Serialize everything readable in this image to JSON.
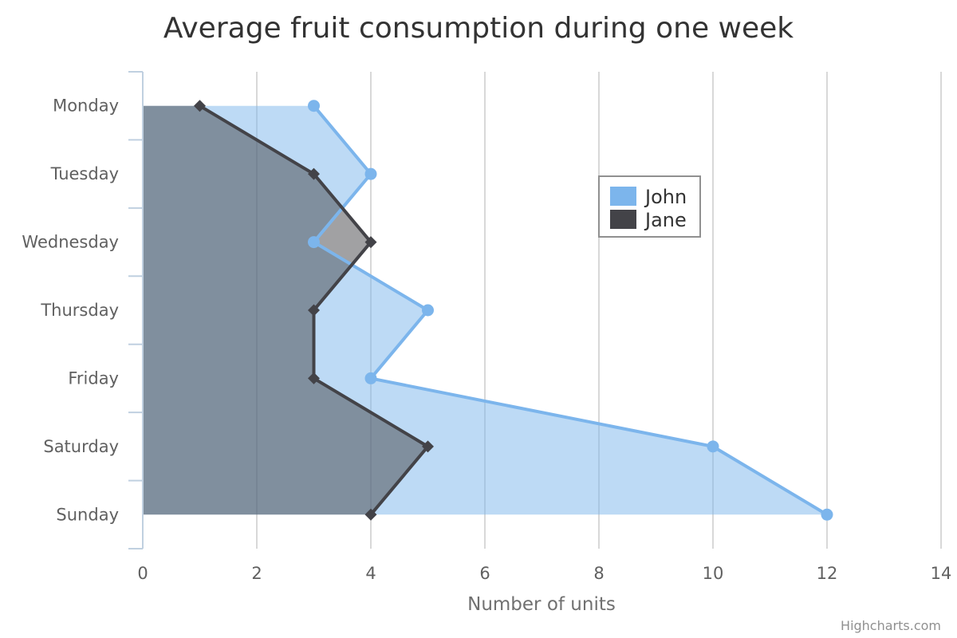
{
  "chart_data": {
    "type": "area",
    "orientation": "inverted",
    "title": "Average fruit consumption during one week",
    "categories": [
      "Monday",
      "Tuesday",
      "Wednesday",
      "Thursday",
      "Friday",
      "Saturday",
      "Sunday"
    ],
    "xlabel": "Number of units",
    "xlim": [
      0,
      14
    ],
    "xticks": [
      "0",
      "2",
      "4",
      "6",
      "8",
      "10",
      "12",
      "14"
    ],
    "grid": true,
    "legend_position": "top-right",
    "series": [
      {
        "name": "John",
        "values": [
          3,
          4,
          3,
          5,
          4,
          10,
          12
        ],
        "color": "#7cb5ec",
        "marker": "circle"
      },
      {
        "name": "Jane",
        "values": [
          1,
          3,
          4,
          3,
          3,
          5,
          4
        ],
        "color": "#434348",
        "marker": "diamond"
      }
    ]
  },
  "credits": "Highcharts.com"
}
